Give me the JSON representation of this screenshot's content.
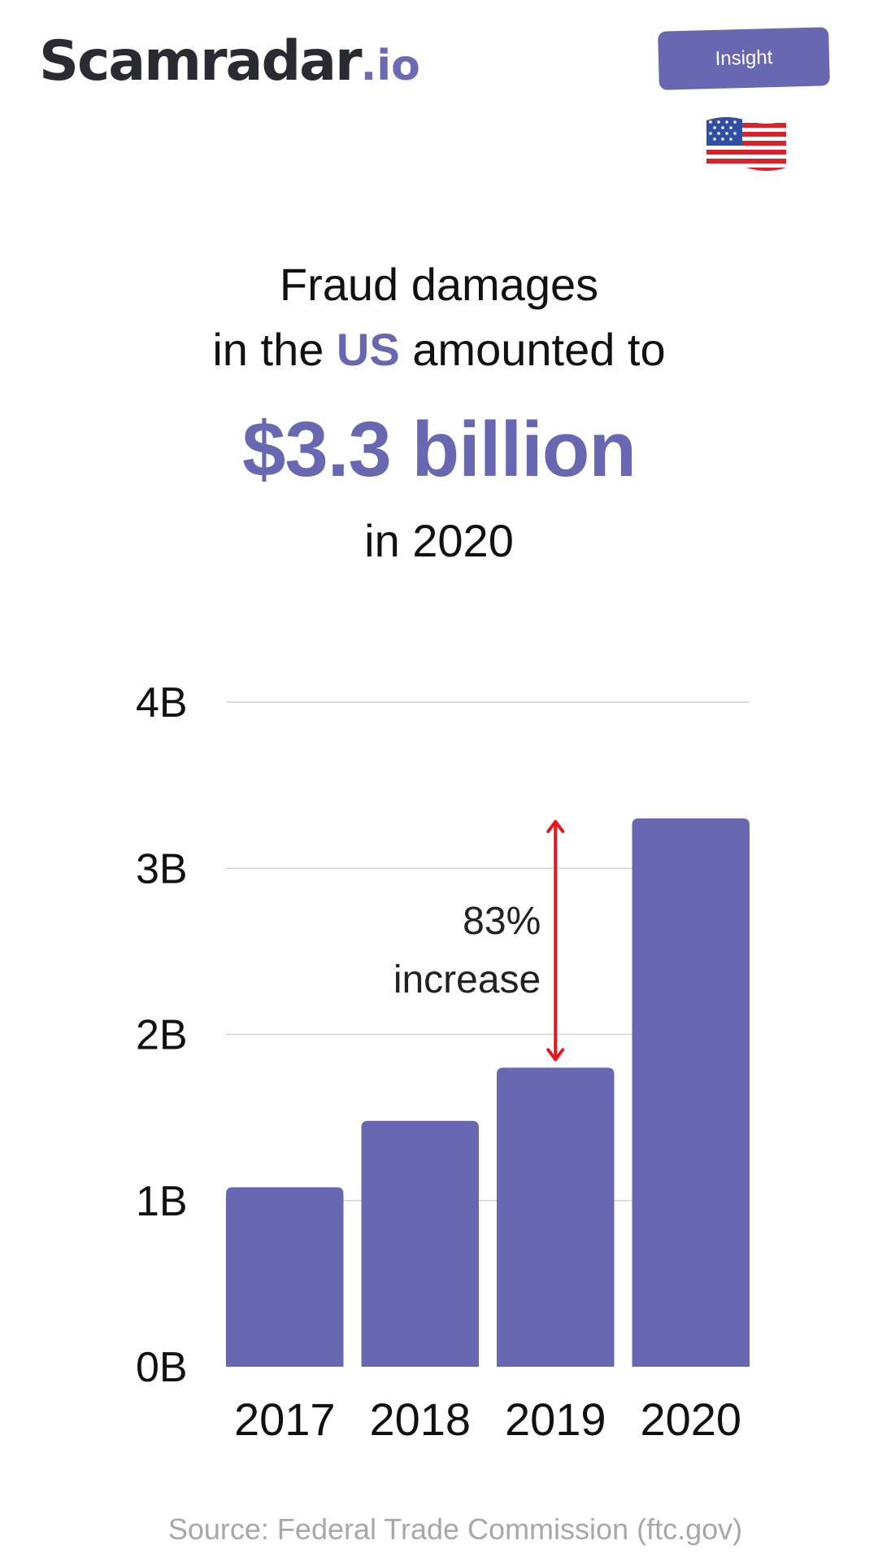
{
  "header": {
    "logo_brand": "Scamradar",
    "logo_tld": ".io",
    "badge_label": "Insight",
    "flag_icon": "us-flag-icon"
  },
  "headline": {
    "line1": "Fraud damages",
    "line2_prefix": "in the ",
    "line2_country": "US",
    "line2_suffix": " amounted to",
    "amount": "$3.3 billion",
    "year_line": "in 2020"
  },
  "chart_data": {
    "type": "bar",
    "categories": [
      "2017",
      "2018",
      "2019",
      "2020"
    ],
    "values": [
      1.08,
      1.48,
      1.8,
      3.3
    ],
    "unit": "B",
    "ylim": [
      0,
      4
    ],
    "yticks": [
      {
        "value": 0,
        "label": "0B"
      },
      {
        "value": 1,
        "label": "1B"
      },
      {
        "value": 2,
        "label": "2B"
      },
      {
        "value": 3,
        "label": "3B"
      },
      {
        "value": 4,
        "label": "4B"
      }
    ],
    "grid": true,
    "annotation": {
      "from_category": "2019",
      "to_category": "2020",
      "line1": "83%",
      "line2": "increase"
    }
  },
  "colors": {
    "accent": "#6868b2",
    "arrow": "#e8161c",
    "grid": "#d4d4d4",
    "source_text": "#a8a8a8"
  },
  "footer": {
    "source": "Source: Federal Trade Commission (ftc.gov)"
  }
}
